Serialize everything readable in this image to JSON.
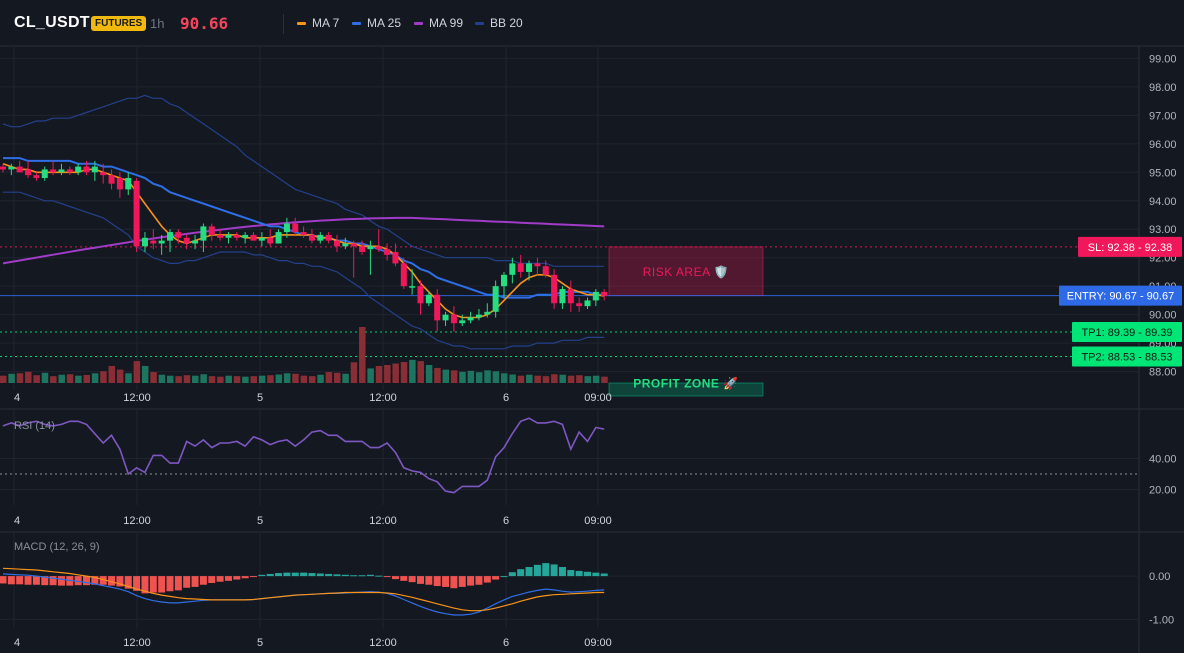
{
  "header": {
    "symbol": "CL_USDT",
    "badge": "FUTURES",
    "timeframe": "1h",
    "last_price": "90.66"
  },
  "legend": [
    {
      "label": "MA 7",
      "color": "#f7931a"
    },
    {
      "label": "MA 25",
      "color": "#2f6fe6"
    },
    {
      "label": "MA 99",
      "color": "#a03cc8"
    },
    {
      "label": "BB 20",
      "color": "#24408c"
    }
  ],
  "colors": {
    "up": "#26de81",
    "down": "#f0185a",
    "background": "#141821",
    "grid": "#1f2430",
    "sl": "#f0185a",
    "entry": "#2f6ae6",
    "tp": "#00e676",
    "rsi": "#7e57c2",
    "macd_line": "#2f6fe6",
    "macd_signal": "#f7931a",
    "hist_up": "#26a69a",
    "hist_down": "#ef5350"
  },
  "chart_data": [
    {
      "type": "candlestick",
      "title": "CL_USDT",
      "ylim": [
        87.6,
        99.4
      ],
      "yticks": [
        "99.00",
        "98.00",
        "97.00",
        "96.00",
        "95.00",
        "94.00",
        "93.00",
        "92.00",
        "91.00",
        "90.00",
        "89.00",
        "88.00"
      ],
      "xticks": [
        "4",
        "12:00",
        "5",
        "12:00",
        "6",
        "09:00"
      ],
      "candles": [
        [
          95.2,
          95.3,
          95.0,
          95.1
        ],
        [
          95.1,
          95.3,
          94.9,
          95.2
        ],
        [
          95.2,
          95.4,
          95.0,
          95.0
        ],
        [
          95.1,
          95.4,
          94.8,
          94.9
        ],
        [
          94.9,
          95.0,
          94.7,
          94.8
        ],
        [
          94.8,
          95.2,
          94.7,
          95.1
        ],
        [
          95.1,
          95.4,
          94.9,
          95.0
        ],
        [
          95.0,
          95.3,
          94.9,
          95.1
        ],
        [
          95.1,
          95.2,
          94.9,
          95.0
        ],
        [
          95.0,
          95.3,
          94.9,
          95.2
        ],
        [
          95.2,
          95.4,
          94.9,
          95.0
        ],
        [
          95.0,
          95.4,
          94.7,
          95.2
        ],
        [
          95.0,
          95.3,
          94.6,
          94.9
        ],
        [
          94.9,
          95.1,
          94.4,
          94.6
        ],
        [
          94.8,
          95.0,
          94.1,
          94.4
        ],
        [
          94.4,
          95.0,
          94.2,
          94.8
        ],
        [
          94.7,
          94.8,
          92.2,
          92.4
        ],
        [
          92.4,
          92.9,
          92.2,
          92.7
        ],
        [
          92.6,
          93.0,
          92.3,
          92.5
        ],
        [
          92.5,
          92.8,
          92.1,
          92.6
        ],
        [
          92.6,
          93.0,
          92.2,
          92.9
        ],
        [
          92.9,
          93.0,
          92.5,
          92.7
        ],
        [
          92.7,
          92.8,
          92.3,
          92.5
        ],
        [
          92.5,
          92.8,
          92.3,
          92.6
        ],
        [
          92.6,
          93.2,
          92.2,
          93.1
        ],
        [
          93.1,
          93.2,
          92.6,
          92.8
        ],
        [
          92.8,
          93.0,
          92.6,
          92.7
        ],
        [
          92.7,
          92.9,
          92.5,
          92.8
        ],
        [
          92.8,
          92.9,
          92.6,
          92.7
        ],
        [
          92.7,
          92.9,
          92.5,
          92.8
        ],
        [
          92.8,
          92.9,
          92.6,
          92.6
        ],
        [
          92.6,
          92.9,
          92.4,
          92.7
        ],
        [
          92.7,
          93.0,
          92.4,
          92.5
        ],
        [
          92.5,
          93.0,
          92.5,
          92.9
        ],
        [
          92.9,
          93.4,
          92.7,
          93.2
        ],
        [
          93.2,
          93.4,
          92.8,
          92.9
        ],
        [
          92.9,
          93.1,
          92.7,
          92.8
        ],
        [
          92.8,
          93.0,
          92.5,
          92.6
        ],
        [
          92.6,
          92.9,
          92.5,
          92.8
        ],
        [
          92.8,
          92.9,
          92.5,
          92.6
        ],
        [
          92.6,
          92.8,
          92.2,
          92.4
        ],
        [
          92.4,
          92.7,
          92.3,
          92.5
        ],
        [
          92.5,
          92.6,
          91.3,
          92.4
        ],
        [
          92.4,
          92.6,
          92.1,
          92.2
        ],
        [
          92.3,
          92.6,
          91.4,
          92.4
        ],
        [
          92.4,
          93.0,
          92.2,
          92.3
        ],
        [
          92.3,
          92.5,
          91.9,
          92.1
        ],
        [
          92.2,
          92.5,
          91.7,
          91.8
        ],
        [
          91.8,
          92.0,
          90.9,
          91.0
        ],
        [
          91.0,
          91.6,
          90.7,
          91.0
        ],
        [
          91.0,
          91.2,
          90.0,
          90.4
        ],
        [
          90.4,
          90.8,
          90.3,
          90.7
        ],
        [
          90.7,
          90.9,
          89.4,
          89.8
        ],
        [
          89.8,
          90.1,
          89.6,
          90.0
        ],
        [
          90.0,
          90.3,
          89.4,
          89.7
        ],
        [
          89.7,
          90.0,
          89.6,
          89.8
        ],
        [
          89.8,
          90.1,
          89.7,
          89.9
        ],
        [
          89.9,
          90.2,
          89.8,
          90.0
        ],
        [
          90.0,
          90.4,
          89.9,
          90.1
        ],
        [
          90.1,
          91.2,
          89.9,
          91.0
        ],
        [
          91.0,
          91.5,
          90.6,
          91.4
        ],
        [
          91.4,
          92.0,
          91.1,
          91.8
        ],
        [
          91.8,
          92.1,
          91.3,
          91.5
        ],
        [
          91.5,
          91.9,
          91.2,
          91.8
        ],
        [
          91.8,
          92.0,
          91.4,
          91.7
        ],
        [
          91.7,
          91.9,
          91.3,
          91.4
        ],
        [
          91.4,
          91.6,
          90.2,
          90.4
        ],
        [
          90.4,
          91.0,
          90.2,
          90.9
        ],
        [
          90.9,
          91.2,
          90.1,
          90.4
        ],
        [
          90.4,
          90.6,
          90.1,
          90.3
        ],
        [
          90.3,
          90.6,
          90.2,
          90.5
        ],
        [
          90.5,
          90.9,
          90.3,
          90.8
        ],
        [
          90.8,
          90.9,
          90.5,
          90.66
        ]
      ],
      "volume": [
        0.3,
        0.38,
        0.4,
        0.46,
        0.32,
        0.42,
        0.28,
        0.34,
        0.36,
        0.3,
        0.33,
        0.4,
        0.48,
        0.7,
        0.55,
        0.4,
        0.9,
        0.7,
        0.45,
        0.34,
        0.3,
        0.28,
        0.32,
        0.3,
        0.36,
        0.28,
        0.26,
        0.3,
        0.28,
        0.26,
        0.28,
        0.3,
        0.32,
        0.35,
        0.4,
        0.38,
        0.3,
        0.28,
        0.34,
        0.45,
        0.42,
        0.38,
        0.85,
        2.3,
        0.6,
        0.7,
        0.74,
        0.8,
        0.86,
        0.95,
        0.9,
        0.74,
        0.62,
        0.55,
        0.52,
        0.46,
        0.5,
        0.44,
        0.52,
        0.48,
        0.4,
        0.35,
        0.3,
        0.34,
        0.3,
        0.28,
        0.36,
        0.34,
        0.3,
        0.32,
        0.28,
        0.3,
        0.26
      ],
      "ma7": [
        95.3,
        95.2,
        95.1,
        95.1,
        95.0,
        95.0,
        95.0,
        95.0,
        95.0,
        95.0,
        95.1,
        95.1,
        95.0,
        94.9,
        94.8,
        94.7,
        94.3,
        93.9,
        93.5,
        93.1,
        92.8,
        92.6,
        92.5,
        92.6,
        92.7,
        92.8,
        92.8,
        92.8,
        92.8,
        92.7,
        92.7,
        92.7,
        92.7,
        92.8,
        92.8,
        92.8,
        92.8,
        92.8,
        92.7,
        92.7,
        92.6,
        92.5,
        92.5,
        92.4,
        92.4,
        92.4,
        92.3,
        92.1,
        91.8,
        91.5,
        91.1,
        90.8,
        90.5,
        90.2,
        90.0,
        89.9,
        89.9,
        89.9,
        90.0,
        90.2,
        90.5,
        90.8,
        91.1,
        91.3,
        91.4,
        91.4,
        91.3,
        91.1,
        90.9,
        90.8,
        90.7,
        90.7,
        90.66
      ],
      "ma25": [
        95.5,
        95.5,
        95.5,
        95.4,
        95.4,
        95.4,
        95.4,
        95.4,
        95.4,
        95.3,
        95.3,
        95.3,
        95.2,
        95.2,
        95.1,
        95.0,
        94.9,
        94.8,
        94.6,
        94.5,
        94.3,
        94.2,
        94.1,
        94.0,
        93.9,
        93.8,
        93.7,
        93.6,
        93.5,
        93.4,
        93.3,
        93.2,
        93.1,
        93.1,
        93.0,
        92.9,
        92.8,
        92.8,
        92.7,
        92.7,
        92.6,
        92.6,
        92.5,
        92.5,
        92.4,
        92.3,
        92.2,
        92.1,
        91.9,
        91.8,
        91.6,
        91.5,
        91.3,
        91.2,
        91.1,
        91.0,
        90.9,
        90.8,
        90.7,
        90.7,
        90.6,
        90.6,
        90.6,
        90.6,
        90.7,
        90.7,
        90.7,
        90.8,
        90.8,
        90.8,
        90.8,
        90.7,
        90.7
      ],
      "ma99_range": [
        91.8,
        93.4,
        93.1
      ],
      "bb_upper": [
        96.7,
        96.6,
        96.6,
        96.7,
        96.8,
        96.8,
        96.9,
        96.9,
        96.9,
        97.0,
        97.1,
        97.2,
        97.3,
        97.4,
        97.5,
        97.6,
        97.6,
        97.7,
        97.6,
        97.6,
        97.4,
        97.3,
        97.1,
        96.9,
        96.7,
        96.5,
        96.3,
        96.1,
        95.9,
        95.6,
        95.4,
        95.2,
        95.0,
        94.8,
        94.6,
        94.4,
        94.3,
        94.2,
        94.1,
        94.0,
        93.9,
        93.7,
        93.6,
        93.5,
        93.3,
        93.1,
        93.0,
        92.8,
        92.6,
        92.4,
        92.3,
        92.2,
        92.1,
        92.0,
        92.0,
        92.0,
        92.0,
        92.0,
        92.0,
        91.9,
        91.9,
        91.9,
        91.8,
        91.8,
        91.8,
        91.8,
        91.7,
        91.7,
        91.7,
        91.7,
        91.7,
        91.7,
        91.7
      ],
      "bb_lower": [
        94.3,
        94.3,
        94.3,
        94.2,
        94.1,
        94.0,
        94.0,
        93.9,
        93.8,
        93.7,
        93.6,
        93.5,
        93.4,
        93.2,
        93.0,
        92.8,
        92.4,
        92.2,
        92.0,
        91.9,
        91.8,
        91.8,
        91.9,
        91.9,
        92.0,
        92.1,
        92.2,
        92.2,
        92.2,
        92.2,
        92.1,
        92.1,
        92.0,
        91.9,
        91.9,
        91.8,
        91.8,
        91.7,
        91.7,
        91.6,
        91.5,
        91.3,
        91.1,
        90.9,
        90.6,
        90.4,
        90.2,
        90.0,
        89.8,
        89.6,
        89.5,
        89.3,
        89.1,
        89.0,
        88.9,
        88.9,
        88.8,
        88.8,
        88.8,
        88.8,
        88.8,
        88.9,
        88.9,
        88.9,
        89.0,
        89.0,
        89.0,
        89.1,
        89.1,
        89.1,
        89.2,
        89.2,
        89.2
      ],
      "levels": {
        "sl": {
          "value": 92.38,
          "label": "SL: 92.38",
          "axis": "92.38"
        },
        "entry": {
          "value": 90.67,
          "label": "ENTRY: 90.67",
          "axis": "90.67"
        },
        "tp1": {
          "value": 89.39,
          "label": "TP1: 89.39",
          "axis": "89.39"
        },
        "tp2": {
          "value": 88.53,
          "label": "TP2: 88.53",
          "axis": "88.53"
        }
      },
      "zones": {
        "risk": {
          "label": "RISK AREA 🛡️",
          "from": 90.67,
          "to": 92.38
        },
        "profit": {
          "label": "PROFIT ZONE 🚀",
          "from": 87.6,
          "to": 90.67
        }
      }
    },
    {
      "type": "line",
      "title": "RSI (14)",
      "ylim": [
        10,
        70
      ],
      "yticks": [
        "40.00",
        "20.00"
      ],
      "xticks": [
        "4",
        "12:00",
        "5",
        "12:00",
        "6",
        "09:00"
      ],
      "reference": 30,
      "values": [
        61,
        63,
        61,
        63,
        64,
        62,
        61,
        62,
        64,
        64,
        62,
        56,
        50,
        55,
        46,
        30,
        34,
        31,
        42,
        42,
        37,
        37,
        51,
        48,
        52,
        47,
        50,
        50,
        51,
        48,
        54,
        52,
        49,
        51,
        52,
        48,
        52,
        57,
        58,
        55,
        55,
        51,
        51,
        51,
        47,
        47,
        50,
        44,
        34,
        32,
        31,
        27,
        25,
        19,
        18,
        22,
        22,
        22,
        26,
        41,
        47,
        56,
        64,
        66,
        63,
        63,
        64,
        62,
        46,
        57,
        51,
        60,
        59
      ]
    },
    {
      "type": "bar",
      "title": "MACD (12, 26, 9)",
      "ylim": [
        -1.2,
        0.95
      ],
      "yticks": [
        "0.00",
        "-1.00"
      ],
      "xticks": [
        "4",
        "12:00",
        "5",
        "12:00",
        "6",
        "09:00"
      ],
      "histogram": [
        -0.17,
        -0.19,
        -0.19,
        -0.2,
        -0.2,
        -0.21,
        -0.21,
        -0.22,
        -0.22,
        -0.21,
        -0.21,
        -0.2,
        -0.2,
        -0.22,
        -0.24,
        -0.29,
        -0.34,
        -0.4,
        -0.38,
        -0.38,
        -0.35,
        -0.33,
        -0.27,
        -0.25,
        -0.2,
        -0.16,
        -0.13,
        -0.11,
        -0.08,
        -0.05,
        -0.02,
        0.03,
        0.05,
        0.07,
        0.08,
        0.08,
        0.08,
        0.07,
        0.06,
        0.05,
        0.04,
        0.03,
        0.02,
        0.02,
        0.03,
        0.01,
        -0.02,
        -0.07,
        -0.11,
        -0.14,
        -0.18,
        -0.2,
        -0.23,
        -0.25,
        -0.28,
        -0.25,
        -0.22,
        -0.2,
        -0.15,
        -0.08,
        0.0,
        0.09,
        0.16,
        0.21,
        0.26,
        0.3,
        0.27,
        0.21,
        0.14,
        0.12,
        0.1,
        0.08,
        0.06
      ],
      "macd": [
        0.05,
        0.04,
        0.03,
        0.02,
        0.0,
        -0.02,
        -0.05,
        -0.07,
        -0.1,
        -0.12,
        -0.15,
        -0.18,
        -0.22,
        -0.26,
        -0.3,
        -0.36,
        -0.45,
        -0.52,
        -0.57,
        -0.6,
        -0.62,
        -0.62,
        -0.6,
        -0.58,
        -0.56,
        -0.55,
        -0.55,
        -0.55,
        -0.55,
        -0.55,
        -0.54,
        -0.52,
        -0.5,
        -0.48,
        -0.46,
        -0.44,
        -0.43,
        -0.42,
        -0.41,
        -0.4,
        -0.4,
        -0.39,
        -0.38,
        -0.37,
        -0.36,
        -0.37,
        -0.4,
        -0.46,
        -0.54,
        -0.62,
        -0.7,
        -0.77,
        -0.83,
        -0.87,
        -0.9,
        -0.9,
        -0.88,
        -0.83,
        -0.74,
        -0.64,
        -0.55,
        -0.47,
        -0.42,
        -0.37,
        -0.33,
        -0.3,
        -0.32,
        -0.35,
        -0.37,
        -0.36,
        -0.35,
        -0.33,
        -0.32
      ],
      "signal": [
        0.18,
        0.17,
        0.16,
        0.15,
        0.14,
        0.12,
        0.1,
        0.08,
        0.06,
        0.03,
        0.0,
        -0.03,
        -0.08,
        -0.13,
        -0.18,
        -0.24,
        -0.3,
        -0.35,
        -0.4,
        -0.44,
        -0.47,
        -0.5,
        -0.52,
        -0.53,
        -0.54,
        -0.55,
        -0.55,
        -0.55,
        -0.55,
        -0.55,
        -0.54,
        -0.52,
        -0.5,
        -0.48,
        -0.46,
        -0.44,
        -0.43,
        -0.42,
        -0.41,
        -0.4,
        -0.39,
        -0.38,
        -0.38,
        -0.38,
        -0.38,
        -0.38,
        -0.39,
        -0.41,
        -0.45,
        -0.49,
        -0.54,
        -0.59,
        -0.64,
        -0.69,
        -0.74,
        -0.78,
        -0.8,
        -0.8,
        -0.78,
        -0.74,
        -0.69,
        -0.64,
        -0.58,
        -0.53,
        -0.48,
        -0.45,
        -0.43,
        -0.42,
        -0.41,
        -0.4,
        -0.39,
        -0.38,
        -0.38
      ]
    }
  ]
}
